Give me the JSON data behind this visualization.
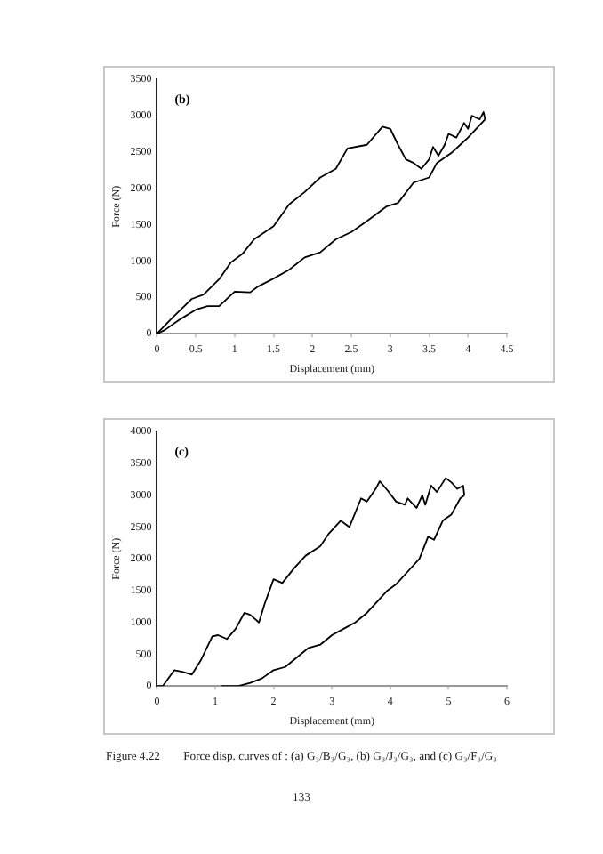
{
  "chart_data": [
    {
      "type": "line",
      "title": "(b)",
      "xlabel": "Displacement (mm)",
      "ylabel": "Force (N)",
      "xlim": [
        0,
        4.5
      ],
      "xticks": [
        0,
        0.5,
        1,
        1.5,
        2,
        2.5,
        3,
        3.5,
        4,
        4.5
      ],
      "ylim": [
        0,
        3500
      ],
      "yticks": [
        0,
        500,
        1000,
        1500,
        2000,
        2500,
        3000,
        3500
      ],
      "grid": false,
      "legend": false,
      "marker": "none",
      "line_style": "solid",
      "series": [
        {
          "color": "#000000",
          "x": [
            0,
            0.2,
            0.45,
            0.6,
            0.8,
            0.95,
            1.1,
            1.25,
            1.5,
            1.7,
            1.9,
            2.1,
            2.3,
            2.45,
            2.7,
            2.9,
            3.0,
            3.1,
            3.2,
            3.3,
            3.4,
            3.5,
            3.55,
            3.62,
            3.7,
            3.75,
            3.85,
            3.95,
            4.0,
            4.05,
            4.15,
            4.2,
            4.22
          ],
          "values": [
            0,
            220,
            480,
            540,
            750,
            980,
            1100,
            1300,
            1480,
            1780,
            1950,
            2150,
            2270,
            2550,
            2600,
            2850,
            2820,
            2600,
            2400,
            2350,
            2270,
            2400,
            2570,
            2450,
            2600,
            2750,
            2700,
            2900,
            2820,
            3000,
            2950,
            3050,
            2950
          ]
        },
        {
          "color": "#000000",
          "x": [
            0,
            0.1,
            0.3,
            0.5,
            0.65,
            0.8,
            1.0,
            1.2,
            1.3,
            1.5,
            1.7,
            1.9,
            2.1,
            2.3,
            2.5,
            2.7,
            2.95,
            3.1,
            3.3,
            3.5,
            3.6,
            3.8,
            3.9,
            4.0,
            4.22
          ],
          "values": [
            0,
            50,
            200,
            330,
            380,
            380,
            580,
            570,
            650,
            760,
            880,
            1050,
            1120,
            1300,
            1400,
            1550,
            1750,
            1800,
            2080,
            2150,
            2350,
            2500,
            2600,
            2700,
            2950
          ]
        }
      ]
    },
    {
      "type": "line",
      "title": "(c)",
      "xlabel": "Displacement (mm)",
      "ylabel": "Force (N)",
      "xlim": [
        0,
        6
      ],
      "xticks": [
        0,
        1,
        2,
        3,
        4,
        5,
        6
      ],
      "ylim": [
        0,
        4000
      ],
      "yticks": [
        0,
        500,
        1000,
        1500,
        2000,
        2500,
        3000,
        3500,
        4000
      ],
      "grid": false,
      "legend": false,
      "marker": "none",
      "line_style": "solid",
      "annotations": [
        "Figure 4.22  Force disp. curves of : (a) G₃/B₃/G₃, (b) G₃/J₃/G₃, and (c) G₃/F₃/G₃",
        "133"
      ],
      "series": [
        {
          "color": "#000000",
          "x": [
            0,
            0.1,
            0.3,
            0.45,
            0.6,
            0.75,
            0.95,
            1.05,
            1.2,
            1.35,
            1.5,
            1.6,
            1.75,
            1.85,
            2.0,
            2.15,
            2.35,
            2.55,
            2.8,
            2.95,
            3.15,
            3.3,
            3.5,
            3.6,
            3.75,
            3.82,
            3.95,
            4.1,
            4.25,
            4.3,
            4.45,
            4.55,
            4.6,
            4.7,
            4.8,
            4.95,
            5.05,
            5.15,
            5.25,
            5.27
          ],
          "values": [
            0,
            0,
            250,
            220,
            180,
            400,
            780,
            800,
            740,
            900,
            1150,
            1120,
            1000,
            1300,
            1680,
            1620,
            1850,
            2050,
            2200,
            2400,
            2600,
            2500,
            2950,
            2900,
            3100,
            3220,
            3080,
            2900,
            2850,
            2950,
            2800,
            3000,
            2850,
            3150,
            3050,
            3270,
            3200,
            3100,
            3150,
            3000
          ]
        },
        {
          "color": "#000000",
          "x": [
            1.1,
            1.4,
            1.6,
            1.8,
            2.0,
            2.2,
            2.4,
            2.6,
            2.8,
            3.0,
            3.2,
            3.4,
            3.6,
            3.8,
            3.95,
            4.1,
            4.3,
            4.5,
            4.65,
            4.75,
            4.9,
            5.05,
            5.2,
            5.27
          ],
          "values": [
            0,
            0,
            50,
            120,
            250,
            300,
            450,
            600,
            650,
            800,
            900,
            1000,
            1150,
            1350,
            1500,
            1600,
            1800,
            2000,
            2350,
            2300,
            2600,
            2700,
            2950,
            3000
          ]
        }
      ]
    }
  ]
}
